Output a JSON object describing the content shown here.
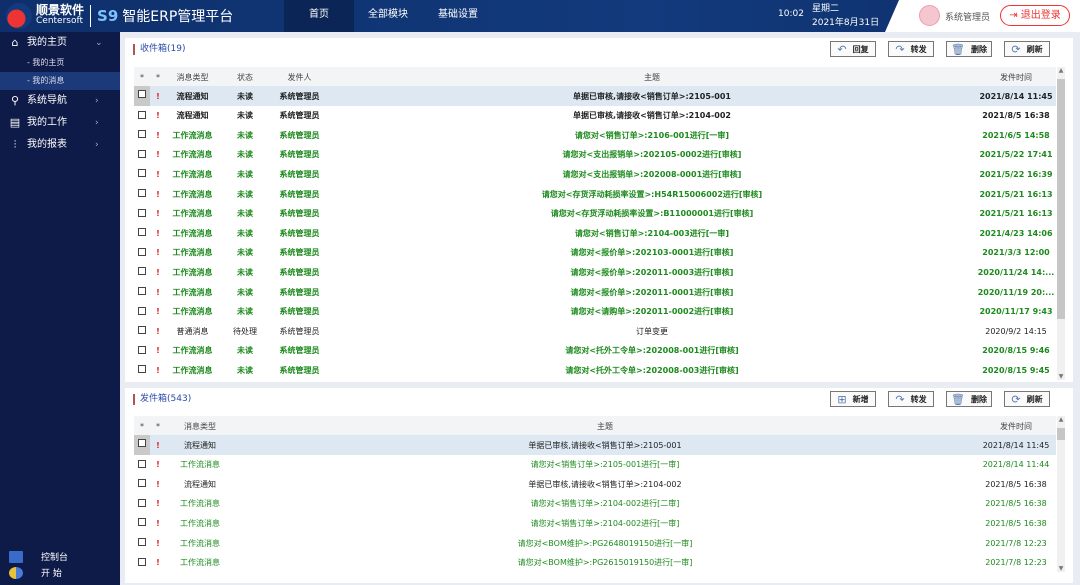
{
  "header": {
    "brand_cn": "顺景软件",
    "brand_en": "Centersoft",
    "s9": "S9",
    "app_title": "智能ERP管理平台",
    "nav": [
      {
        "label": "首页",
        "active": true
      },
      {
        "label": "全部模块"
      },
      {
        "label": "基础设置"
      }
    ],
    "time": "10:02",
    "weekday": "星期二",
    "date": "2021年8月31日",
    "user": "系统管理员",
    "logout": "退出登录"
  },
  "sidebar": {
    "items": [
      {
        "label": "我的主页",
        "icon": "home-icon",
        "chev": "⌄"
      },
      {
        "label": "系统导航",
        "icon": "navigation-icon",
        "chev": "›"
      },
      {
        "label": "我的工作",
        "icon": "briefcase-icon",
        "chev": "›"
      },
      {
        "label": "我的报表",
        "icon": "chart-icon",
        "chev": "›"
      }
    ],
    "subitems": [
      {
        "label": "- 我的主页"
      },
      {
        "label": "- 我的消息",
        "active": true
      }
    ],
    "bottom": [
      {
        "label": "控制台",
        "icon": "console-icon"
      },
      {
        "label": "开 始",
        "icon": "start-icon"
      }
    ]
  },
  "inbox": {
    "title": "收件箱(19)",
    "buttons": [
      "回复",
      "转发",
      "删除",
      "刷新"
    ],
    "columns": [
      "*",
      "*",
      "消息类型",
      "状态",
      "发件人",
      "主题",
      "发件时间"
    ],
    "rows": [
      [
        "流程通知",
        "未读",
        "系统管理员",
        "单据已审核,请接收<销售订单>:2105-001",
        "2021/8/14 11:45",
        "k"
      ],
      [
        "流程通知",
        "未读",
        "系统管理员",
        "单据已审核,请接收<销售订单>:2104-002",
        "2021/8/5 16:38",
        "k"
      ],
      [
        "工作流消息",
        "未读",
        "系统管理员",
        "请您对<销售订单>:2106-001进行[一审]",
        "2021/6/5 14:58",
        "g"
      ],
      [
        "工作流消息",
        "未读",
        "系统管理员",
        "请您对<支出报销单>:202105-0002进行[审核]",
        "2021/5/22 17:41",
        "g"
      ],
      [
        "工作流消息",
        "未读",
        "系统管理员",
        "请您对<支出报销单>:202008-0001进行[审核]",
        "2021/5/22 16:39",
        "g"
      ],
      [
        "工作流消息",
        "未读",
        "系统管理员",
        "请您对<存货浮动耗损率设置>:H54R15006002进行[审核]",
        "2021/5/21 16:13",
        "g"
      ],
      [
        "工作流消息",
        "未读",
        "系统管理员",
        "请您对<存货浮动耗损率设置>:B11000001进行[审核]",
        "2021/5/21 16:13",
        "g"
      ],
      [
        "工作流消息",
        "未读",
        "系统管理员",
        "请您对<销售订单>:2104-003进行[一审]",
        "2021/4/23 14:06",
        "g"
      ],
      [
        "工作流消息",
        "未读",
        "系统管理员",
        "请您对<报价单>:202103-0001进行[审核]",
        "2021/3/3 12:00",
        "g"
      ],
      [
        "工作流消息",
        "未读",
        "系统管理员",
        "请您对<报价单>:202011-0003进行[审核]",
        "2020/11/24 14:...",
        "g"
      ],
      [
        "工作流消息",
        "未读",
        "系统管理员",
        "请您对<报价单>:202011-0001进行[审核]",
        "2020/11/19 20:...",
        "g"
      ],
      [
        "工作流消息",
        "未读",
        "系统管理员",
        "请您对<请购单>:202011-0002进行[审核]",
        "2020/11/17 9:43",
        "g"
      ],
      [
        "普通消息",
        "待处理",
        "系统管理员",
        "订单变更",
        "2020/9/2 14:15",
        "n"
      ],
      [
        "工作流消息",
        "未读",
        "系统管理员",
        "请您对<托外工令单>:202008-001进行[审核]",
        "2020/8/15 9:46",
        "g"
      ],
      [
        "工作流消息",
        "未读",
        "系统管理员",
        "请您对<托外工令单>:202008-003进行[审核]",
        "2020/8/15 9:45",
        "g"
      ]
    ]
  },
  "outbox": {
    "title": "发件箱(543)",
    "buttons": [
      "新增",
      "转发",
      "删除",
      "刷新"
    ],
    "columns": [
      "*",
      "*",
      "消息类型",
      "主题",
      "发件时间"
    ],
    "rows": [
      [
        "流程通知",
        "单据已审核,请接收<销售订单>:2105-001",
        "2021/8/14 11:45",
        "k"
      ],
      [
        "工作流消息",
        "请您对<销售订单>:2105-001进行[一审]",
        "2021/8/14 11:44",
        "g"
      ],
      [
        "流程通知",
        "单据已审核,请接收<销售订单>:2104-002",
        "2021/8/5 16:38",
        "k"
      ],
      [
        "工作流消息",
        "请您对<销售订单>:2104-002进行[二审]",
        "2021/8/5 16:38",
        "g"
      ],
      [
        "工作流消息",
        "请您对<销售订单>:2104-002进行[一审]",
        "2021/8/5 16:38",
        "g"
      ],
      [
        "工作流消息",
        "请您对<BOM维护>:PG2648019150进行[一审]",
        "2021/7/8 12:23",
        "g"
      ],
      [
        "工作流消息",
        "请您对<BOM维护>:PG2615019150进行[一审]",
        "2021/7/8 12:23",
        "g"
      ]
    ]
  },
  "colors": {
    "header": "#0e2f6b",
    "sidebar": "#0e1a47",
    "green": "#1d8a1d",
    "flag": "#d22",
    "logout": "#e33"
  }
}
